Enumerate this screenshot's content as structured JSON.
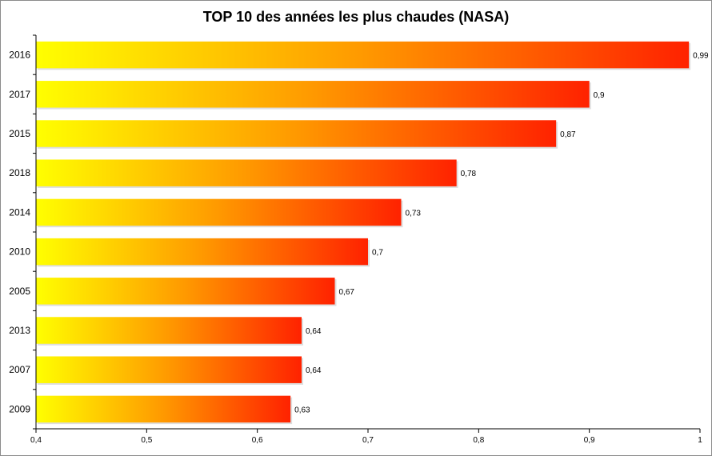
{
  "chart_data": {
    "type": "bar",
    "orientation": "horizontal",
    "title": "TOP 10 des années les plus chaudes (NASA)",
    "xlabel": "",
    "ylabel": "",
    "categories": [
      "2016",
      "2017",
      "2015",
      "2018",
      "2014",
      "2010",
      "2005",
      "2013",
      "2007",
      "2009"
    ],
    "values": [
      0.99,
      0.9,
      0.87,
      0.78,
      0.73,
      0.7,
      0.67,
      0.64,
      0.64,
      0.63
    ],
    "value_labels": [
      "0,99",
      "0,9",
      "0,87",
      "0,78",
      "0,73",
      "0,7",
      "0,67",
      "0,64",
      "0,64",
      "0,63"
    ],
    "xlim": [
      0.4,
      1.0
    ],
    "x_ticks": [
      0.4,
      0.5,
      0.6,
      0.7,
      0.8,
      0.9,
      1.0
    ],
    "x_tick_labels": [
      "0,4",
      "0,5",
      "0,6",
      "0,7",
      "0,8",
      "0,9",
      "1"
    ],
    "grid": false,
    "legend": "none",
    "colors": {
      "gradient_start": "#ffff00",
      "gradient_mid": "#ff9900",
      "gradient_end": "#ff2200",
      "axis": "#000000"
    }
  }
}
